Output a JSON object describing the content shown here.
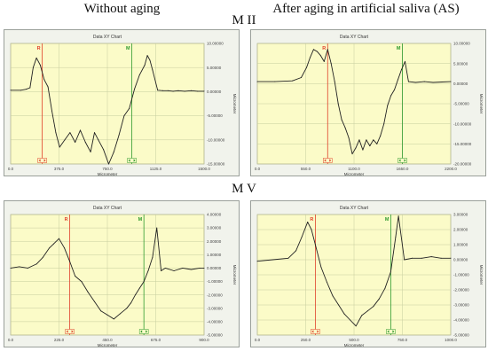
{
  "column_titles": [
    "Without aging",
    "After aging in artificial saliva (AS)"
  ],
  "row_titles": [
    "M II",
    "M V"
  ],
  "chart_data": [
    {
      "type": "line",
      "title": "Data XY Chart",
      "xlabel": "Micrometer",
      "ylabel": "Micrometer",
      "xlim": [
        0,
        1500
      ],
      "ylim": [
        -15,
        10
      ],
      "xticks": [
        "0.0",
        "375.0",
        "750.0",
        "1125.0",
        "1500.0"
      ],
      "xtick_values": [
        0,
        375,
        750,
        1125,
        1500
      ],
      "yticks": [
        "10.00000",
        "5.00000",
        "0.00000",
        "-5.00000",
        "-10.00000",
        "-15.00000"
      ],
      "ytick_values": [
        10,
        5,
        0,
        -5,
        -10,
        -15
      ],
      "markers": [
        {
          "label": "R",
          "x": 245,
          "color": "#e0402a"
        },
        {
          "label": "M",
          "x": 940,
          "color": "#2e9a2e"
        }
      ],
      "x": [
        0,
        80,
        120,
        150,
        175,
        200,
        230,
        260,
        290,
        320,
        350,
        380,
        420,
        460,
        500,
        540,
        580,
        620,
        650,
        680,
        720,
        760,
        800,
        840,
        880,
        920,
        960,
        1000,
        1040,
        1060,
        1080,
        1100,
        1140,
        1180,
        1220,
        1260,
        1300,
        1350,
        1400,
        1450,
        1500
      ],
      "values": [
        0.3,
        0.3,
        0.5,
        0.8,
        5.0,
        7.0,
        5.5,
        2.5,
        1.0,
        -4.0,
        -8.5,
        -11.5,
        -10.0,
        -8.5,
        -10.5,
        -8.0,
        -10.5,
        -12.5,
        -8.5,
        -10.0,
        -12.0,
        -15.0,
        -12.5,
        -9.0,
        -5.0,
        -3.5,
        0.5,
        3.5,
        5.5,
        7.5,
        6.5,
        4.5,
        0.3,
        0.2,
        0.2,
        0.1,
        0.2,
        0.1,
        0.2,
        0.1,
        0.1
      ]
    },
    {
      "type": "line",
      "title": "Data XY Chart",
      "xlabel": "Micrometer",
      "ylabel": "Micrometer",
      "xlim": [
        0,
        2200
      ],
      "ylim": [
        -20,
        10
      ],
      "xticks": [
        "0.0",
        "550.0",
        "1100.0",
        "1650.0",
        "2200.0"
      ],
      "xtick_values": [
        0,
        550,
        1100,
        1650,
        2200
      ],
      "yticks": [
        "10.00000",
        "5.00000",
        "0.00000",
        "-5.00000",
        "-10.00000",
        "-15.00000",
        "-20.00000"
      ],
      "ytick_values": [
        10,
        5,
        0,
        -5,
        -10,
        -15,
        -20
      ],
      "markers": [
        {
          "label": "R",
          "x": 800,
          "color": "#e0402a"
        },
        {
          "label": "M",
          "x": 1650,
          "color": "#2e9a2e"
        }
      ],
      "x": [
        0,
        200,
        400,
        500,
        560,
        600,
        640,
        680,
        720,
        760,
        800,
        840,
        880,
        920,
        960,
        1000,
        1040,
        1080,
        1120,
        1160,
        1200,
        1240,
        1280,
        1320,
        1360,
        1400,
        1440,
        1480,
        1520,
        1560,
        1600,
        1640,
        1680,
        1720,
        1800,
        1900,
        2000,
        2100,
        2200
      ],
      "values": [
        0.5,
        0.5,
        0.7,
        1.5,
        4.0,
        6.5,
        8.5,
        8.0,
        7.0,
        5.5,
        8.5,
        5.0,
        0.5,
        -5.0,
        -9.0,
        -11.0,
        -13.5,
        -17.5,
        -16.0,
        -14.0,
        -16.5,
        -14.0,
        -15.5,
        -14.0,
        -15.0,
        -13.0,
        -10.0,
        -5.5,
        -3.0,
        -1.5,
        1.0,
        3.5,
        5.5,
        0.5,
        0.3,
        0.5,
        0.3,
        0.4,
        0.5
      ]
    },
    {
      "type": "line",
      "title": "Data XY Chart",
      "xlabel": "Micrometer",
      "ylabel": "Micrometer",
      "xlim": [
        0,
        900
      ],
      "ylim": [
        -5,
        4
      ],
      "xticks": [
        "0.0",
        "225.0",
        "450.0",
        "675.0",
        "900.0"
      ],
      "xtick_values": [
        0,
        225,
        450,
        675,
        900
      ],
      "yticks": [
        "4.00000",
        "3.00000",
        "2.00000",
        "1.00000",
        "0.00000",
        "-1.00000",
        "-2.00000",
        "-3.00000",
        "-4.00000",
        "-5.00000"
      ],
      "ytick_values": [
        4,
        3,
        2,
        1,
        0,
        -1,
        -2,
        -3,
        -4,
        -5
      ],
      "markers": [
        {
          "label": "R",
          "x": 275,
          "color": "#e0402a"
        },
        {
          "label": "M",
          "x": 620,
          "color": "#2e9a2e"
        }
      ],
      "x": [
        0,
        40,
        80,
        120,
        150,
        180,
        200,
        225,
        250,
        275,
        300,
        330,
        360,
        390,
        420,
        450,
        480,
        510,
        540,
        560,
        580,
        600,
        620,
        640,
        660,
        680,
        700,
        720,
        760,
        800,
        840,
        880,
        900
      ],
      "values": [
        0.0,
        0.1,
        0.0,
        0.3,
        0.8,
        1.5,
        1.8,
        2.2,
        1.5,
        0.5,
        -0.6,
        -1.0,
        -1.8,
        -2.5,
        -3.2,
        -3.5,
        -3.8,
        -3.4,
        -3.0,
        -2.6,
        -2.0,
        -1.5,
        -1.0,
        -0.2,
        0.8,
        3.0,
        -0.2,
        0.0,
        -0.2,
        0.0,
        -0.1,
        0.0,
        0.0
      ]
    },
    {
      "type": "line",
      "title": "Data XY Chart",
      "xlabel": "Micrometer",
      "ylabel": "Micrometer",
      "xlim": [
        0,
        1000
      ],
      "ylim": [
        -5,
        3
      ],
      "xticks": [
        "0.0",
        "250.0",
        "500.0",
        "750.0",
        "1000.0"
      ],
      "xtick_values": [
        0,
        250,
        500,
        750,
        1000
      ],
      "yticks": [
        "3.00000",
        "2.00000",
        "1.00000",
        "0.00000",
        "-1.00000",
        "-2.00000",
        "-3.00000",
        "-4.00000",
        "-5.00000"
      ],
      "ytick_values": [
        3,
        2,
        1,
        0,
        -1,
        -2,
        -3,
        -4,
        -5
      ],
      "markers": [
        {
          "label": "R",
          "x": 300,
          "color": "#e0402a"
        },
        {
          "label": "M",
          "x": 690,
          "color": "#2e9a2e"
        }
      ],
      "x": [
        0,
        80,
        160,
        200,
        230,
        260,
        280,
        300,
        330,
        360,
        390,
        420,
        450,
        480,
        510,
        540,
        570,
        600,
        630,
        660,
        690,
        715,
        730,
        760,
        800,
        850,
        900,
        950,
        1000
      ],
      "values": [
        -0.1,
        0.0,
        0.1,
        0.6,
        1.5,
        2.5,
        2.0,
        1.0,
        -0.5,
        -1.5,
        -2.4,
        -3.0,
        -3.6,
        -4.0,
        -4.4,
        -3.7,
        -3.4,
        -3.1,
        -2.6,
        -1.9,
        -0.8,
        1.5,
        2.9,
        0.0,
        0.1,
        0.1,
        0.2,
        0.1,
        0.1
      ]
    }
  ]
}
